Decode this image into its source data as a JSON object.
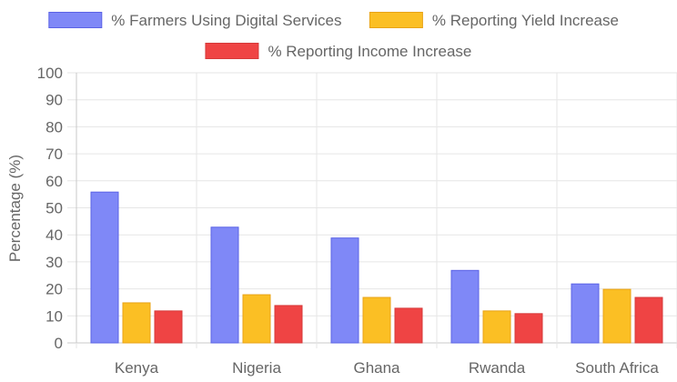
{
  "chart_data": {
    "type": "bar",
    "title": "",
    "xlabel": "",
    "ylabel": "Percentage (%)",
    "ylim": [
      0,
      100
    ],
    "yticks": [
      0,
      10,
      20,
      30,
      40,
      50,
      60,
      70,
      80,
      90,
      100
    ],
    "grid": true,
    "legend_position": "top",
    "categories": [
      "Kenya",
      "Nigeria",
      "Ghana",
      "Rwanda",
      "South Africa"
    ],
    "series": [
      {
        "name": "% Farmers Using Digital Services",
        "values": [
          56,
          43,
          39,
          27,
          22
        ],
        "fill": "#7f88f7",
        "stroke": "#5b63e6"
      },
      {
        "name": "% Reporting Yield Increase",
        "values": [
          15,
          18,
          17,
          12,
          20
        ],
        "fill": "#fbbf24",
        "stroke": "#e8a317"
      },
      {
        "name": "% Reporting Income Increase",
        "values": [
          12,
          14,
          13,
          11,
          17
        ],
        "fill": "#ef4444",
        "stroke": "#d63a3a"
      }
    ]
  }
}
